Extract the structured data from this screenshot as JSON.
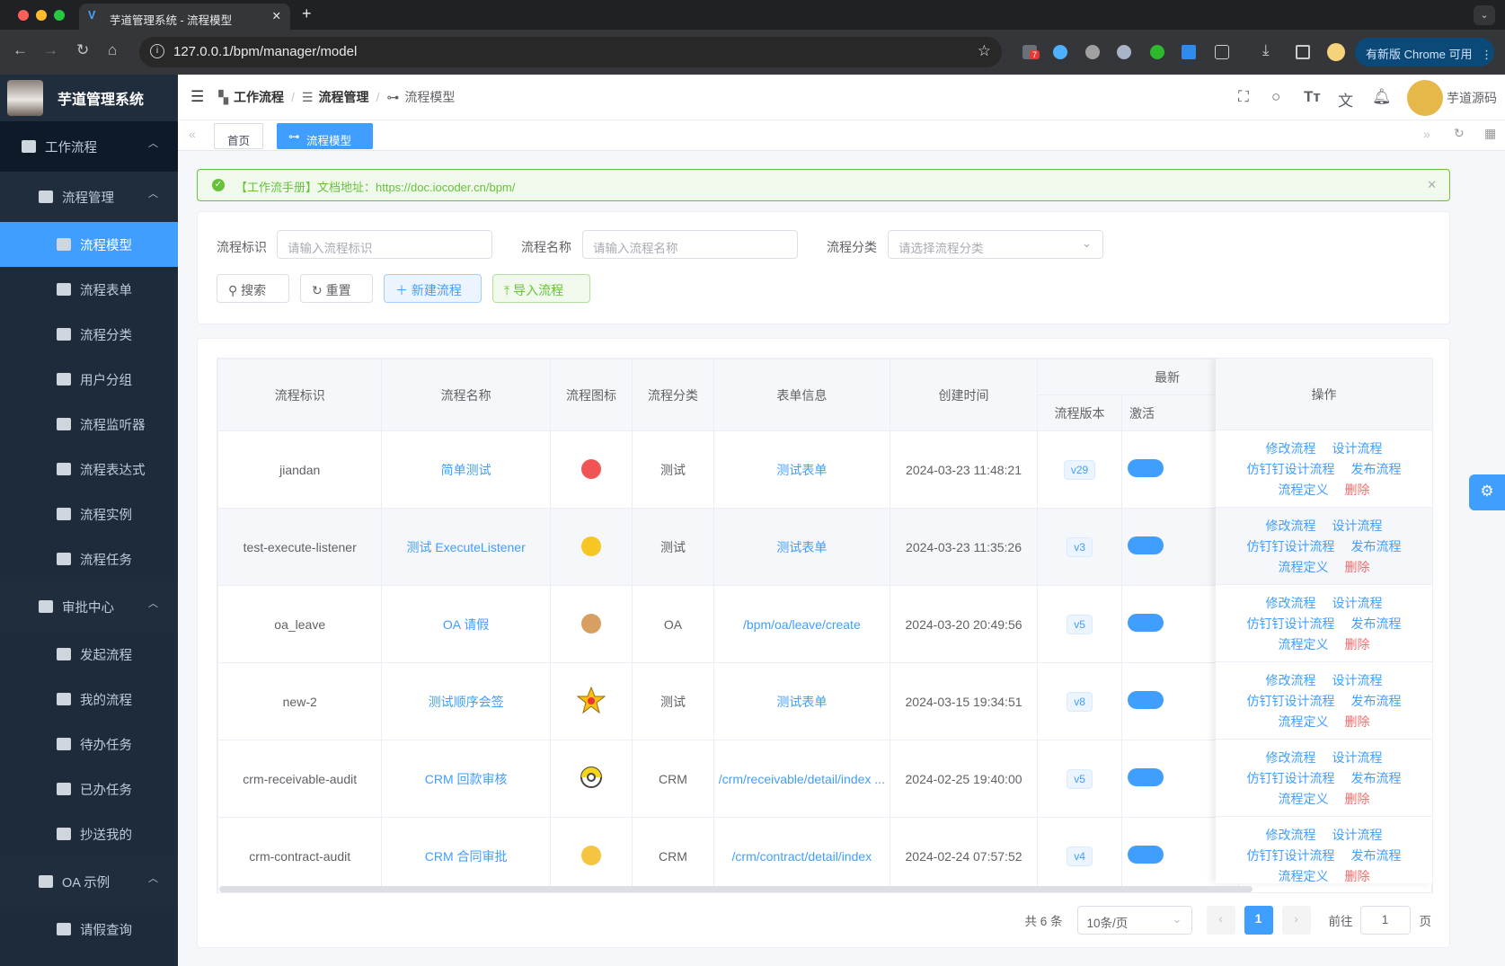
{
  "browser": {
    "tab_title": "芋道管理系统 - 流程模型",
    "url": "127.0.0.1/bpm/manager/model",
    "update_label": "有新版 Chrome 可用",
    "ext_badge": "7"
  },
  "sidebar": {
    "app_name": "芋道管理系统",
    "groups": [
      {
        "label": "工作流程"
      },
      {
        "label": "流程管理",
        "items": [
          "流程模型",
          "流程表单",
          "流程分类",
          "用户分组",
          "流程监听器",
          "流程表达式",
          "流程实例",
          "流程任务"
        ]
      },
      {
        "label": "审批中心",
        "items": [
          "发起流程",
          "我的流程",
          "待办任务",
          "已办任务",
          "抄送我的"
        ]
      },
      {
        "label": "OA 示例",
        "items": [
          "请假查询"
        ]
      }
    ]
  },
  "header": {
    "breadcrumb": [
      "工作流程",
      "流程管理",
      "流程模型"
    ],
    "username": "芋道源码"
  },
  "tags": [
    "首页",
    "流程模型"
  ],
  "alert": {
    "text": "【工作流手册】文档地址：https://doc.iocoder.cn/bpm/"
  },
  "search": {
    "key_label": "流程标识",
    "key_placeholder": "请输入流程标识",
    "name_label": "流程名称",
    "name_placeholder": "请输入流程名称",
    "category_label": "流程分类",
    "category_placeholder": "请选择流程分类",
    "search_btn": "搜索",
    "reset_btn": "重置",
    "create_btn": "新建流程",
    "import_btn": "导入流程"
  },
  "table": {
    "headers": {
      "key": "流程标识",
      "name": "流程名称",
      "icon": "流程图标",
      "category": "流程分类",
      "form": "表单信息",
      "created": "创建时间",
      "latest_group": "最新",
      "version": "流程版本",
      "active": "激活",
      "actions": "操作"
    },
    "action_labels": {
      "edit": "修改流程",
      "design": "设计流程",
      "dingtalk": "仿钉钉设计流程",
      "publish": "发布流程",
      "definition": "流程定义",
      "delete": "删除"
    },
    "rows": [
      {
        "key": "jiandan",
        "name": "简单测试",
        "icon": "red-fox-icon",
        "category": "测试",
        "form": "测试表单",
        "created": "2024-03-23 11:48:21",
        "version": "v29",
        "active": true
      },
      {
        "key": "test-execute-listener",
        "name": "测试 ExecuteListener",
        "icon": "pikachu-icon",
        "category": "测试",
        "form": "测试表单",
        "created": "2024-03-23 11:35:26",
        "version": "v3",
        "active": true
      },
      {
        "key": "oa_leave",
        "name": "OA 请假",
        "icon": "eevee-icon",
        "category": "OA",
        "form": "/bpm/oa/leave/create",
        "created": "2024-03-20 20:49:56",
        "version": "v5",
        "active": true
      },
      {
        "key": "new-2",
        "name": "测试顺序会签",
        "icon": "star-pokeball-icon",
        "category": "测试",
        "form": "测试表单",
        "created": "2024-03-15 19:34:51",
        "version": "v8",
        "active": true
      },
      {
        "key": "crm-receivable-audit",
        "name": "CRM 回款审核",
        "icon": "pokeball-icon",
        "category": "CRM",
        "form": "/crm/receivable/detail/index ...",
        "created": "2024-02-25 19:40:00",
        "version": "v5",
        "active": true
      },
      {
        "key": "crm-contract-audit",
        "name": "CRM 合同审批",
        "icon": "yellow-creature-icon",
        "category": "CRM",
        "form": "/crm/contract/detail/index",
        "created": "2024-02-24 07:57:52",
        "version": "v4",
        "active": true
      }
    ]
  },
  "pagination": {
    "total": "共 6 条",
    "page_size": "10条/页",
    "current": "1",
    "goto_label": "前往",
    "goto_value": "1",
    "page_suffix": "页"
  },
  "colors": {
    "primary": "#409eff",
    "success": "#67c23a",
    "danger": "#f56c6c",
    "sidebar_bg": "#1d2b3a"
  }
}
